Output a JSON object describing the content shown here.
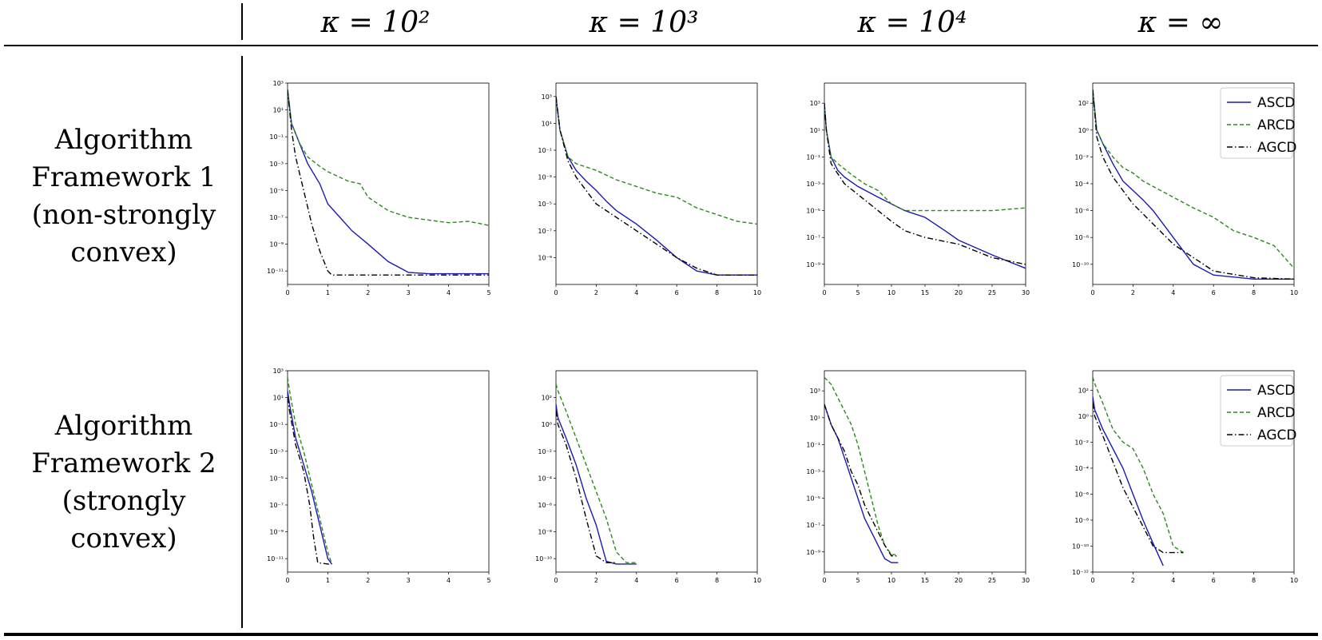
{
  "header": {
    "columns": [
      "κ = 10²",
      "κ = 10³",
      "κ = 10⁴",
      "κ = ∞"
    ]
  },
  "rows": [
    {
      "label_lines": [
        "Algorithm",
        "Framework 1",
        "(non-strongly",
        "convex)"
      ]
    },
    {
      "label_lines": [
        "Algorithm",
        "Framework 2",
        "(strongly",
        "convex)"
      ]
    }
  ],
  "legend": {
    "entries": [
      {
        "name": "ASCD",
        "color": "#1a1ab4",
        "style": "solid"
      },
      {
        "name": "ARCD",
        "color": "#2a8a1a",
        "style": "dashed"
      },
      {
        "name": "AGCD",
        "color": "#000000",
        "style": "dashdot"
      }
    ]
  },
  "chart_data": [
    {
      "type": "line",
      "yscale": "log",
      "xlim": [
        0,
        5
      ],
      "ylim": [
        -12,
        3
      ],
      "xticks": [
        0,
        1,
        2,
        3,
        4,
        5
      ],
      "yticks": [
        3,
        1,
        -1,
        -3,
        -5,
        -7,
        -9,
        -11
      ],
      "legend": false,
      "series": [
        {
          "name": "ASCD",
          "x": [
            0,
            0.1,
            0.3,
            0.5,
            0.8,
            1.0,
            1.3,
            1.6,
            2.0,
            2.5,
            3.0,
            3.5,
            4.0,
            5.0
          ],
          "y": [
            2.5,
            0,
            -1.5,
            -3,
            -4.5,
            -6,
            -7,
            -8,
            -9,
            -10.3,
            -11.1,
            -11.2,
            -11.2,
            -11.2
          ]
        },
        {
          "name": "ARCD",
          "x": [
            0,
            0.1,
            0.3,
            0.5,
            0.8,
            1.0,
            1.5,
            1.8,
            2.0,
            2.5,
            3.0,
            3.5,
            4.0,
            4.5,
            5.0
          ],
          "y": [
            2.5,
            0,
            -1.5,
            -2.5,
            -3.2,
            -3.6,
            -4.3,
            -4.5,
            -5.5,
            -6.5,
            -7,
            -7.2,
            -7.4,
            -7.3,
            -7.6
          ]
        },
        {
          "name": "AGCD",
          "x": [
            0,
            0.1,
            0.2,
            0.4,
            0.6,
            0.8,
            1.0,
            1.1,
            1.5,
            2.0,
            3.0,
            4.0,
            5.0
          ],
          "y": [
            2.5,
            -0.5,
            -2.5,
            -5,
            -7.5,
            -9.5,
            -11,
            -11.3,
            -11.3,
            -11.3,
            -11.3,
            -11.3,
            -11.3
          ]
        }
      ]
    },
    {
      "type": "line",
      "yscale": "log",
      "xlim": [
        0,
        10
      ],
      "ylim": [
        -11,
        4
      ],
      "xticks": [
        0,
        2,
        4,
        6,
        8,
        10
      ],
      "yticks": [
        3,
        1,
        -1,
        -3,
        -5,
        -7,
        -9
      ],
      "legend": false,
      "series": [
        {
          "name": "ASCD",
          "x": [
            0,
            0.2,
            0.6,
            1.0,
            1.5,
            2.0,
            2.5,
            3.0,
            4.0,
            5.0,
            6.0,
            7.0,
            8.0,
            10.0
          ],
          "y": [
            3,
            0.5,
            -1.5,
            -2.5,
            -3.3,
            -4,
            -4.8,
            -5.5,
            -6.5,
            -7.7,
            -9,
            -10,
            -10.3,
            -10.3
          ]
        },
        {
          "name": "ARCD",
          "x": [
            0,
            0.2,
            0.6,
            1.0,
            2.0,
            3.0,
            4.0,
            5.0,
            6.0,
            7.0,
            8.0,
            9.0,
            10.0
          ],
          "y": [
            3,
            0.5,
            -1.5,
            -2,
            -2.5,
            -3.2,
            -3.7,
            -4.2,
            -4.5,
            -5.3,
            -5.8,
            -6.3,
            -6.5
          ]
        },
        {
          "name": "AGCD",
          "x": [
            0,
            0.2,
            0.6,
            1.0,
            2.0,
            3.0,
            4.0,
            5.0,
            6.0,
            7.0,
            8.0,
            10.0
          ],
          "y": [
            3,
            0.5,
            -1.8,
            -3,
            -5,
            -6,
            -7,
            -8,
            -9,
            -9.8,
            -10.3,
            -10.3
          ]
        }
      ]
    },
    {
      "type": "line",
      "yscale": "log",
      "xlim": [
        0,
        30
      ],
      "ylim": [
        -10.5,
        4.5
      ],
      "xticks": [
        0,
        5,
        10,
        15,
        20,
        25,
        30
      ],
      "yticks": [
        3,
        1,
        -1,
        -3,
        -5,
        -7,
        -9
      ],
      "legend": false,
      "series": [
        {
          "name": "ASCD",
          "x": [
            0,
            0.3,
            1,
            2,
            3,
            5,
            8,
            10,
            12,
            15,
            18,
            20,
            25,
            30
          ],
          "y": [
            3,
            1,
            -1,
            -2,
            -2.5,
            -3.2,
            -4,
            -4.5,
            -5,
            -5.5,
            -6.5,
            -7.2,
            -8.3,
            -9.3
          ]
        },
        {
          "name": "ARCD",
          "x": [
            0,
            0.3,
            1,
            2,
            4,
            6,
            8,
            10,
            12,
            15,
            20,
            25,
            30
          ],
          "y": [
            3,
            1,
            -1,
            -1.5,
            -2.3,
            -3,
            -3.5,
            -4.5,
            -5,
            -5,
            -5,
            -5,
            -4.8
          ]
        },
        {
          "name": "AGCD",
          "x": [
            0,
            0.3,
            1,
            3,
            5,
            8,
            10,
            12,
            15,
            20,
            25,
            30
          ],
          "y": [
            3,
            1,
            -1.5,
            -3,
            -3.8,
            -5,
            -5.8,
            -6.5,
            -7,
            -7.5,
            -8.5,
            -9
          ]
        }
      ]
    },
    {
      "type": "line",
      "yscale": "log",
      "xlim": [
        0,
        10
      ],
      "ylim": [
        -11.5,
        3.5
      ],
      "xticks": [
        0,
        2,
        4,
        6,
        8,
        10
      ],
      "yticks": [
        2,
        0,
        -2,
        -4,
        -6,
        -8,
        -10
      ],
      "legend": true,
      "series": [
        {
          "name": "ASCD",
          "x": [
            0,
            0.2,
            0.5,
            1.0,
            1.5,
            2.0,
            2.5,
            3.0,
            4.0,
            5.0,
            6.0,
            8.0,
            10.0
          ],
          "y": [
            3,
            0,
            -1,
            -2.5,
            -3.8,
            -4.5,
            -5.2,
            -6,
            -8,
            -10,
            -10.8,
            -11.1,
            -11.1
          ]
        },
        {
          "name": "ARCD",
          "x": [
            0,
            0.2,
            0.5,
            1.0,
            1.5,
            2.0,
            2.5,
            3.0,
            4.0,
            5.0,
            6.0,
            7.0,
            8.0,
            9.0,
            10.0
          ],
          "y": [
            3,
            0,
            -1,
            -2,
            -2.8,
            -3.2,
            -3.8,
            -4.2,
            -5,
            -5.8,
            -6.5,
            -7.5,
            -8,
            -8.6,
            -10.3
          ]
        },
        {
          "name": "AGCD",
          "x": [
            0,
            0.2,
            0.5,
            1.0,
            1.5,
            2.0,
            3.0,
            4.0,
            5.0,
            6.0,
            8.0,
            10.0
          ],
          "y": [
            3,
            -0.5,
            -2,
            -3.5,
            -4.5,
            -5.5,
            -7,
            -8.5,
            -9.5,
            -10.5,
            -11,
            -11.1
          ]
        }
      ]
    },
    {
      "type": "line",
      "yscale": "log",
      "xlim": [
        0,
        5
      ],
      "ylim": [
        -12,
        3
      ],
      "xticks": [
        0,
        1,
        2,
        3,
        4,
        5
      ],
      "yticks": [
        3,
        1,
        -1,
        -3,
        -5,
        -7,
        -9,
        -11
      ],
      "legend": false,
      "series": [
        {
          "name": "ASCD",
          "x": [
            0,
            0.05,
            0.2,
            0.4,
            0.6,
            0.8,
            1.0,
            1.1
          ],
          "y": [
            1.5,
            0.5,
            -2,
            -4,
            -6,
            -8.5,
            -11,
            -11.4
          ]
        },
        {
          "name": "ARCD",
          "x": [
            0,
            0.05,
            0.2,
            0.4,
            0.6,
            0.8,
            1.0,
            1.1
          ],
          "y": [
            2.5,
            1.5,
            -1,
            -3,
            -5.5,
            -8,
            -10.5,
            -11.4
          ]
        },
        {
          "name": "AGCD",
          "x": [
            0,
            0.05,
            0.2,
            0.4,
            0.55,
            0.65,
            0.75,
            1.0,
            1.1
          ],
          "y": [
            1,
            0,
            -2.5,
            -4.5,
            -7,
            -9.5,
            -11.3,
            -11.4,
            -11.4
          ]
        }
      ]
    },
    {
      "type": "line",
      "yscale": "log",
      "xlim": [
        0,
        10
      ],
      "ylim": [
        -11,
        4
      ],
      "xticks": [
        0,
        2,
        4,
        6,
        8,
        10
      ],
      "yticks": [
        2,
        0,
        -2,
        -4,
        -6,
        -8,
        -10
      ],
      "legend": false,
      "series": [
        {
          "name": "ASCD",
          "x": [
            0,
            0.1,
            0.5,
            1.0,
            1.5,
            2.0,
            2.5,
            3.0,
            4.0
          ],
          "y": [
            1.5,
            0.5,
            -1,
            -3,
            -5.5,
            -7.5,
            -10.2,
            -10.4,
            -10.4
          ]
        },
        {
          "name": "ARCD",
          "x": [
            0,
            0.1,
            0.5,
            1.0,
            1.5,
            2.0,
            2.5,
            3.0,
            3.5,
            4.0
          ],
          "y": [
            3,
            2.5,
            1,
            -1,
            -3,
            -5,
            -7,
            -9.5,
            -10.3,
            -10.3
          ]
        },
        {
          "name": "AGCD",
          "x": [
            0,
            0.1,
            0.5,
            1.0,
            1.5,
            2.0,
            2.5,
            3.0
          ],
          "y": [
            1,
            0,
            -1.5,
            -4,
            -7,
            -9.8,
            -10.3,
            -10.3
          ]
        }
      ]
    },
    {
      "type": "line",
      "yscale": "log",
      "xlim": [
        0,
        30
      ],
      "ylim": [
        -10.5,
        4.5
      ],
      "xticks": [
        0,
        5,
        10,
        15,
        20,
        25,
        30
      ],
      "yticks": [
        3,
        1,
        -1,
        -3,
        -5,
        -7,
        -9
      ],
      "legend": false,
      "series": [
        {
          "name": "ASCD",
          "x": [
            0,
            1,
            2,
            3,
            4,
            5,
            6,
            7,
            8,
            9,
            10,
            11
          ],
          "y": [
            2,
            0.5,
            -0.5,
            -2,
            -3.5,
            -5,
            -6.5,
            -7.5,
            -8.5,
            -9.5,
            -9.8,
            -9.8
          ]
        },
        {
          "name": "ARCD",
          "x": [
            0,
            1,
            2,
            3,
            4,
            5,
            6,
            7,
            8,
            9,
            10,
            11
          ],
          "y": [
            4,
            3.5,
            2.5,
            1.5,
            0.5,
            -1,
            -3,
            -5,
            -7,
            -8.5,
            -9.2,
            -9.2
          ]
        },
        {
          "name": "AGCD",
          "x": [
            0,
            1,
            2,
            3,
            4,
            5,
            6,
            7,
            8,
            9,
            10,
            11
          ],
          "y": [
            2,
            0.5,
            -0.5,
            -1.5,
            -3,
            -4,
            -5.5,
            -6.5,
            -7.5,
            -8.5,
            -9.3,
            -9.3
          ]
        }
      ]
    },
    {
      "type": "line",
      "yscale": "log",
      "xlim": [
        0,
        10
      ],
      "ylim": [
        -12,
        3.5
      ],
      "xticks": [
        0,
        2,
        4,
        6,
        8,
        10
      ],
      "yticks": [
        2,
        0,
        -2,
        -4,
        -6,
        -8,
        -10,
        -12
      ],
      "legend": true,
      "series": [
        {
          "name": "ASCD",
          "x": [
            0,
            0.1,
            0.5,
            1.0,
            1.5,
            2.0,
            2.5,
            3.0,
            3.5
          ],
          "y": [
            1.5,
            0.5,
            -1,
            -2.5,
            -4,
            -6,
            -8,
            -9.8,
            -11.5
          ]
        },
        {
          "name": "ARCD",
          "x": [
            0,
            0.1,
            0.5,
            1.0,
            1.5,
            2.0,
            2.5,
            3.0,
            3.5,
            4.0,
            4.5
          ],
          "y": [
            3,
            2.5,
            1,
            -1,
            -2,
            -2.5,
            -4,
            -6,
            -7.5,
            -10,
            -10.5
          ]
        },
        {
          "name": "AGCD",
          "x": [
            0,
            0.1,
            0.5,
            1.0,
            1.5,
            2.0,
            2.5,
            3.0,
            3.5,
            4.0,
            4.5
          ],
          "y": [
            1,
            0,
            -1.5,
            -3.5,
            -5.5,
            -7,
            -8.5,
            -10,
            -10.5,
            -10.5,
            -10.5
          ]
        }
      ]
    }
  ]
}
